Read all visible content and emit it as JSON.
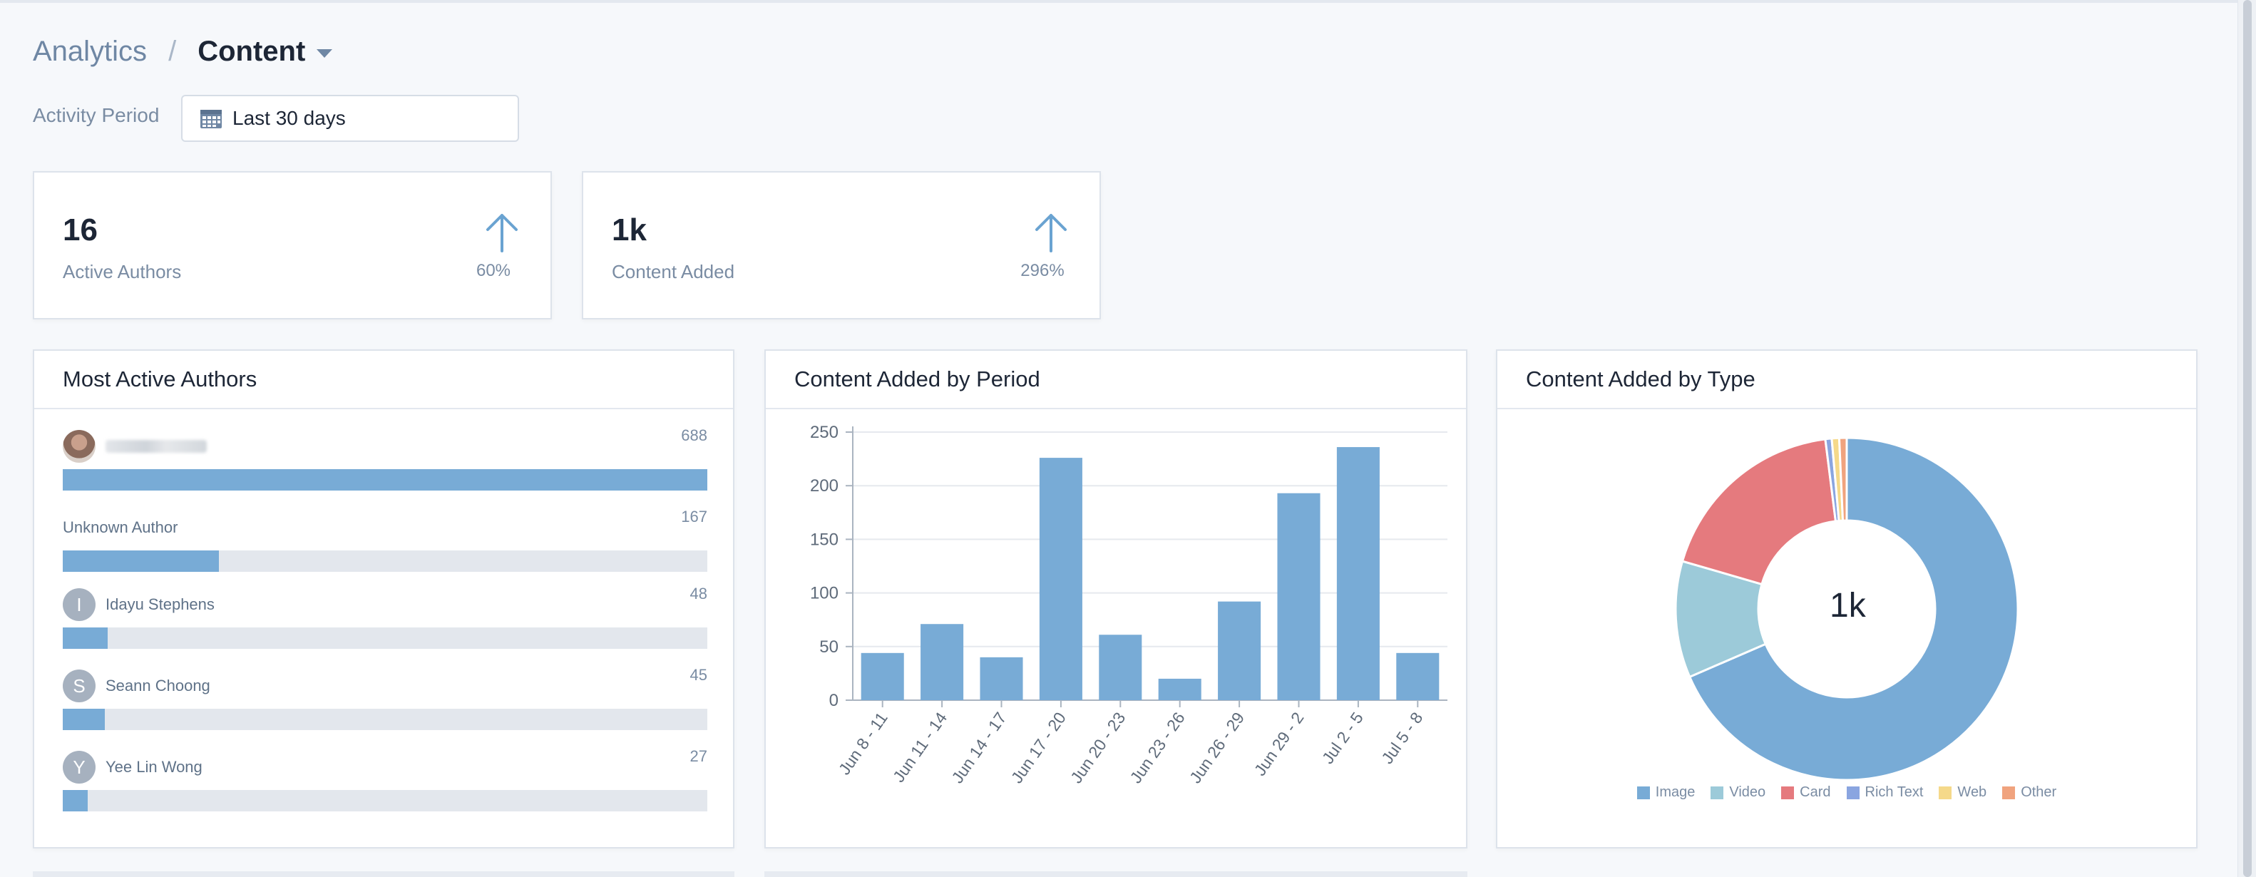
{
  "breadcrumb": {
    "root": "Analytics",
    "separator": "/",
    "current": "Content"
  },
  "activity_period": {
    "label": "Activity Period",
    "value": "Last 30 days"
  },
  "kpis": [
    {
      "value": "16",
      "label": "Active Authors",
      "change": "60%",
      "trend": "up"
    },
    {
      "value": "1k",
      "label": "Content Added",
      "change": "296%",
      "trend": "up"
    }
  ],
  "most_active_authors": {
    "title": "Most Active Authors",
    "max": 688,
    "authors": [
      {
        "name": "",
        "initial": "",
        "count": "688",
        "value": 688,
        "avatar": "photo"
      },
      {
        "name": "Unknown Author",
        "initial": "",
        "count": "167",
        "value": 167,
        "avatar": "none"
      },
      {
        "name": "Idayu Stephens",
        "initial": "I",
        "count": "48",
        "value": 48,
        "avatar": "initial"
      },
      {
        "name": "Seann Choong",
        "initial": "S",
        "count": "45",
        "value": 45,
        "avatar": "initial"
      },
      {
        "name": "Yee Lin Wong",
        "initial": "Y",
        "count": "27",
        "value": 27,
        "avatar": "initial"
      }
    ]
  },
  "content_by_period": {
    "title": "Content Added by Period"
  },
  "content_by_type": {
    "title": "Content Added by Type",
    "center_label": "1k"
  },
  "colors": {
    "bar": "#78abd6",
    "accent_arrow": "#6aa3d1",
    "image": "#78abd6",
    "video": "#9ccad9",
    "card": "#e57a7e",
    "rich_text": "#8aa5e0",
    "web": "#f5d98a",
    "other": "#f0a37e"
  },
  "chart_data": [
    {
      "type": "bar",
      "title": "Content Added by Period",
      "categories": [
        "Jun 8 - 11",
        "Jun 11 - 14",
        "Jun 14 - 17",
        "Jun 17 - 20",
        "Jun 20 - 23",
        "Jun 23 - 26",
        "Jun 26 - 29",
        "Jun 29 - 2",
        "Jul 2 - 5",
        "Jul 5 - 8"
      ],
      "values": [
        44,
        71,
        40,
        226,
        61,
        20,
        92,
        193,
        236,
        44
      ],
      "ylim": [
        0,
        250
      ],
      "yticks": [
        0,
        50,
        100,
        150,
        200,
        250
      ],
      "xlabel": "",
      "ylabel": "",
      "grid": true,
      "legend": "none"
    },
    {
      "type": "pie",
      "title": "Content Added by Type",
      "donut": true,
      "center_label": "1k",
      "legend": "bottom",
      "labels": [
        "Image",
        "Video",
        "Card",
        "Rich Text",
        "Web",
        "Other"
      ],
      "values": [
        68.5,
        11.0,
        18.5,
        0.6,
        0.7,
        0.7
      ]
    }
  ]
}
